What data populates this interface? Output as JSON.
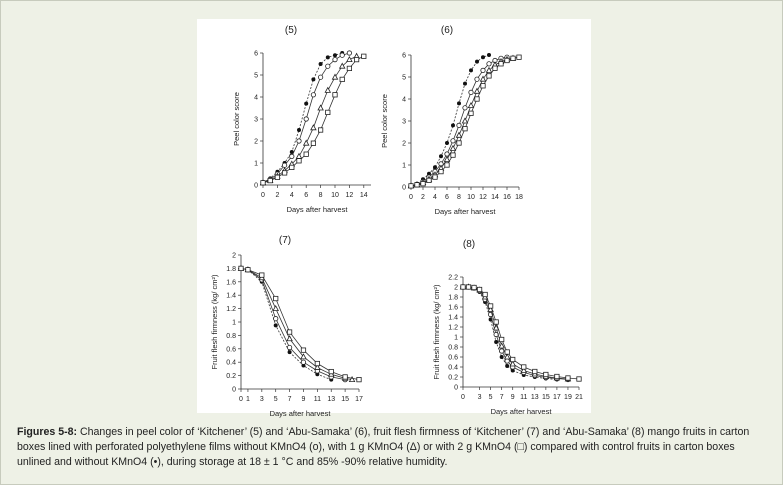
{
  "chart_data": [
    {
      "type": "line",
      "panel_label": "(5)",
      "xlabel": "Days after harvest",
      "ylabel": "Peel color score",
      "xlim": [
        0,
        15
      ],
      "ylim": [
        0,
        6
      ],
      "xticks": [
        0,
        2,
        4,
        6,
        8,
        10,
        12,
        14
      ],
      "yticks": [
        0,
        1,
        2,
        3,
        4,
        5,
        6
      ],
      "series": [
        {
          "marker": "filled-circle",
          "x": [
            0,
            1,
            2,
            3,
            4,
            5,
            6,
            7,
            8,
            9,
            10,
            11
          ],
          "y": [
            0.1,
            0.3,
            0.6,
            1.0,
            1.5,
            2.5,
            3.7,
            4.8,
            5.5,
            5.8,
            5.9,
            6.0
          ]
        },
        {
          "marker": "open-circle",
          "x": [
            0,
            1,
            2,
            3,
            4,
            5,
            6,
            7,
            8,
            9,
            10,
            11,
            12
          ],
          "y": [
            0.1,
            0.25,
            0.5,
            0.9,
            1.3,
            2.0,
            3.0,
            4.1,
            4.9,
            5.4,
            5.7,
            5.9,
            6.0
          ]
        },
        {
          "marker": "open-triangle",
          "x": [
            0,
            1,
            2,
            3,
            4,
            5,
            6,
            7,
            8,
            9,
            10,
            11,
            12,
            13
          ],
          "y": [
            0.1,
            0.2,
            0.4,
            0.65,
            0.95,
            1.3,
            1.9,
            2.6,
            3.5,
            4.3,
            4.9,
            5.4,
            5.7,
            5.85
          ]
        },
        {
          "marker": "open-square",
          "x": [
            0,
            1,
            2,
            3,
            4,
            5,
            6,
            7,
            8,
            9,
            10,
            11,
            12,
            13,
            14
          ],
          "y": [
            0.1,
            0.2,
            0.35,
            0.55,
            0.8,
            1.1,
            1.4,
            1.9,
            2.5,
            3.3,
            4.1,
            4.8,
            5.3,
            5.7,
            5.85
          ]
        }
      ]
    },
    {
      "type": "line",
      "panel_label": "(6)",
      "xlabel": "Days after harvest",
      "ylabel": "Peel color score",
      "xlim": [
        0,
        18
      ],
      "ylim": [
        0,
        6
      ],
      "xticks": [
        0,
        2,
        4,
        6,
        8,
        10,
        12,
        14,
        16,
        18
      ],
      "yticks": [
        0,
        1,
        2,
        3,
        4,
        5,
        6
      ],
      "series": [
        {
          "marker": "filled-circle",
          "x": [
            0,
            1,
            2,
            3,
            4,
            5,
            6,
            7,
            8,
            9,
            10,
            11,
            12,
            13
          ],
          "y": [
            0.05,
            0.15,
            0.35,
            0.6,
            0.9,
            1.4,
            2.0,
            2.8,
            3.8,
            4.7,
            5.3,
            5.7,
            5.9,
            6.0
          ]
        },
        {
          "marker": "open-circle",
          "x": [
            0,
            1,
            2,
            3,
            4,
            5,
            6,
            7,
            8,
            9,
            10,
            11,
            12,
            13,
            14,
            15,
            16
          ],
          "y": [
            0.05,
            0.1,
            0.25,
            0.45,
            0.7,
            1.05,
            1.5,
            2.1,
            2.8,
            3.6,
            4.3,
            4.9,
            5.3,
            5.6,
            5.75,
            5.85,
            5.9
          ]
        },
        {
          "marker": "open-triangle",
          "x": [
            0,
            1,
            2,
            3,
            4,
            5,
            6,
            7,
            8,
            9,
            10,
            11,
            12,
            13,
            14,
            15,
            16,
            17
          ],
          "y": [
            0.05,
            0.1,
            0.2,
            0.35,
            0.55,
            0.85,
            1.25,
            1.75,
            2.35,
            3.0,
            3.7,
            4.35,
            4.9,
            5.3,
            5.55,
            5.7,
            5.8,
            5.85
          ]
        },
        {
          "marker": "open-square",
          "x": [
            0,
            1,
            2,
            3,
            4,
            5,
            6,
            7,
            8,
            9,
            10,
            11,
            12,
            13,
            14,
            15,
            16,
            17,
            18
          ],
          "y": [
            0.05,
            0.1,
            0.15,
            0.3,
            0.45,
            0.7,
            1.0,
            1.45,
            2.0,
            2.65,
            3.35,
            4.0,
            4.6,
            5.05,
            5.4,
            5.6,
            5.75,
            5.85,
            5.9
          ]
        }
      ]
    },
    {
      "type": "line",
      "panel_label": "(7)",
      "xlabel": "Days after harvest",
      "ylabel": "Fruit flesh firmness (kg/ cm²)",
      "xlim": [
        0,
        17
      ],
      "ylim": [
        0,
        2
      ],
      "xticks": [
        0,
        1,
        3,
        5,
        7,
        9,
        11,
        13,
        15,
        17
      ],
      "yticks": [
        0,
        0.2,
        0.4,
        0.6,
        0.8,
        1,
        1.2,
        1.4,
        1.6,
        1.8,
        2
      ],
      "ytick_labels": [
        "0",
        "0.2",
        "0.4",
        "0.6",
        "0.8",
        "1",
        "1.2",
        "1.4",
        "1.6",
        "1.8",
        "2"
      ],
      "series": [
        {
          "marker": "filled-circle",
          "x": [
            0,
            1,
            3,
            5,
            7,
            9,
            11,
            13
          ],
          "y": [
            1.8,
            1.78,
            1.6,
            0.95,
            0.55,
            0.35,
            0.22,
            0.14
          ]
        },
        {
          "marker": "open-circle",
          "x": [
            0,
            1,
            3,
            5,
            7,
            9,
            11,
            13,
            15
          ],
          "y": [
            1.8,
            1.78,
            1.63,
            1.05,
            0.62,
            0.4,
            0.27,
            0.18,
            0.14
          ]
        },
        {
          "marker": "open-triangle",
          "x": [
            0,
            1,
            3,
            5,
            7,
            9,
            11,
            13,
            15,
            16
          ],
          "y": [
            1.8,
            1.78,
            1.66,
            1.2,
            0.75,
            0.48,
            0.32,
            0.22,
            0.16,
            0.14
          ]
        },
        {
          "marker": "open-square",
          "x": [
            0,
            1,
            3,
            5,
            7,
            9,
            11,
            13,
            15,
            17
          ],
          "y": [
            1.8,
            1.78,
            1.7,
            1.35,
            0.85,
            0.58,
            0.38,
            0.26,
            0.18,
            0.14
          ]
        }
      ]
    },
    {
      "type": "line",
      "panel_label": "(8)",
      "xlabel": "Days after harvest",
      "ylabel": "Fruit flesh firmness (kg/ cm²)",
      "xlim": [
        0,
        21
      ],
      "ylim": [
        0,
        2.2
      ],
      "xticks": [
        0,
        3,
        5,
        7,
        9,
        11,
        13,
        15,
        17,
        19,
        21
      ],
      "yticks": [
        0,
        0.2,
        0.4,
        0.6,
        0.8,
        1,
        1.2,
        1.4,
        1.6,
        1.8,
        2,
        2.2
      ],
      "ytick_labels": [
        "0",
        "0.2",
        "0.4",
        "0.6",
        "0.8",
        "1",
        "1.2",
        "1.4",
        "1.6",
        "1.8",
        "2",
        "2.2"
      ],
      "series": [
        {
          "marker": "filled-circle",
          "x": [
            0,
            1,
            2,
            3,
            4,
            5,
            6,
            7,
            8,
            9,
            11,
            13,
            15,
            17
          ],
          "y": [
            2.0,
            2.0,
            1.98,
            1.9,
            1.7,
            1.35,
            0.9,
            0.6,
            0.42,
            0.33,
            0.24,
            0.2,
            0.17,
            0.15
          ]
        },
        {
          "marker": "open-circle",
          "x": [
            0,
            1,
            2,
            3,
            4,
            5,
            6,
            7,
            8,
            9,
            11,
            13,
            15,
            17,
            19
          ],
          "y": [
            2.0,
            2.0,
            1.98,
            1.92,
            1.75,
            1.45,
            1.05,
            0.72,
            0.52,
            0.4,
            0.29,
            0.23,
            0.19,
            0.17,
            0.15
          ]
        },
        {
          "marker": "open-triangle",
          "x": [
            0,
            1,
            2,
            3,
            4,
            5,
            6,
            7,
            8,
            9,
            11,
            13,
            15,
            17,
            19
          ],
          "y": [
            2.0,
            2.0,
            1.98,
            1.94,
            1.8,
            1.55,
            1.18,
            0.82,
            0.6,
            0.46,
            0.33,
            0.26,
            0.21,
            0.18,
            0.16
          ]
        },
        {
          "marker": "open-square",
          "x": [
            0,
            1,
            2,
            3,
            4,
            5,
            6,
            7,
            8,
            9,
            11,
            13,
            15,
            17,
            19,
            21
          ],
          "y": [
            2.0,
            2.0,
            1.99,
            1.95,
            1.85,
            1.62,
            1.3,
            0.95,
            0.7,
            0.55,
            0.4,
            0.31,
            0.25,
            0.21,
            0.18,
            0.16
          ]
        }
      ]
    }
  ],
  "caption": {
    "label": "Figures 5-8:",
    "text": "Changes in peel color of ‘Kitchener’ (5) and ‘Abu-Samaka’ (6), fruit flesh firmness of ‘Kitchener’ (7) and ‘Abu-Samaka’ (8) mango fruits in carton boxes lined with perforated polyethylene films  without KMnO4 (o), with 1 g KMnO4 (Δ) or with 2 g  KMnO4 (□) compared with control fruits in carton boxes unlined and without  KMnO4 (•), during storage at 18 ± 1 °C and 85% -90% relative humidity."
  }
}
